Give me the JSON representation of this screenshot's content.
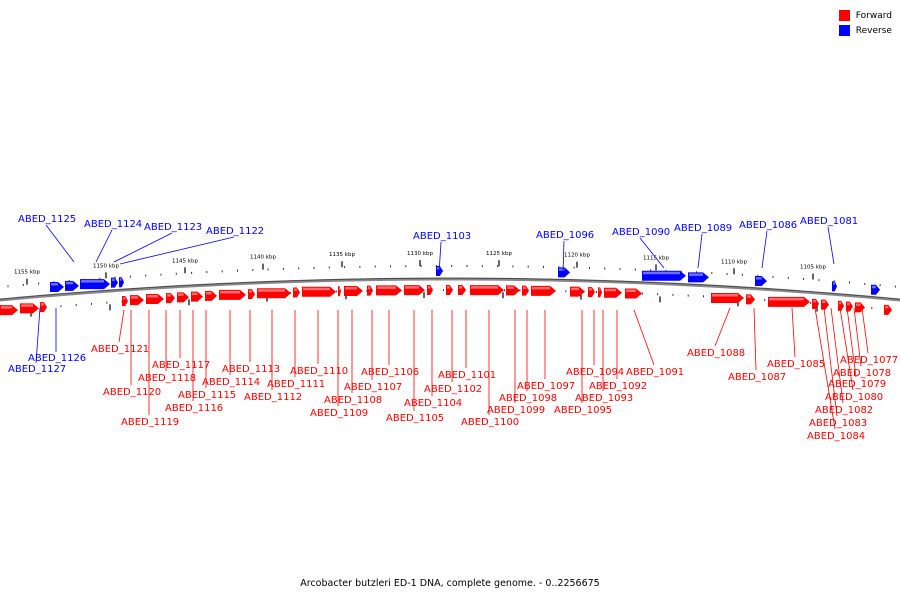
{
  "legend": {
    "forward": {
      "label": "Forward",
      "color": "#ff0000"
    },
    "reverse": {
      "label": "Reverse",
      "color": "#0000ff"
    }
  },
  "footer": "Arcobacter butzleri ED-1 DNA, complete genome. - 0..2256675",
  "scale_ticks": [
    "1155 kbp",
    "1150 kbp",
    "1145 kbp",
    "1140 kbp",
    "1135 kbp",
    "1130 kbp",
    "1125 kbp",
    "1120 kbp",
    "1115 kbp",
    "1110 kbp",
    "1105 kbp"
  ],
  "reverse_genes": [
    "ABED_1125",
    "ABED_1124",
    "ABED_1123",
    "ABED_1122",
    "ABED_1103",
    "ABED_1096",
    "ABED_1090",
    "ABED_1089",
    "ABED_1086",
    "ABED_1081",
    "ABED_1126",
    "ABED_1127"
  ],
  "forward_genes": [
    "ABED_1121",
    "ABED_1120",
    "ABED_1119",
    "ABED_1118",
    "ABED_1117",
    "ABED_1116",
    "ABED_1115",
    "ABED_1114",
    "ABED_1113",
    "ABED_1112",
    "ABED_1111",
    "ABED_1110",
    "ABED_1109",
    "ABED_1108",
    "ABED_1107",
    "ABED_1106",
    "ABED_1105",
    "ABED_1104",
    "ABED_1102",
    "ABED_1101",
    "ABED_1100",
    "ABED_1099",
    "ABED_1098",
    "ABED_1097",
    "ABED_1095",
    "ABED_1094",
    "ABED_1093",
    "ABED_1092",
    "ABED_1091",
    "ABED_1088",
    "ABED_1087",
    "ABED_1085",
    "ABED_1084",
    "ABED_1083",
    "ABED_1082",
    "ABED_1080",
    "ABED_1079",
    "ABED_1078",
    "ABED_1077"
  ]
}
